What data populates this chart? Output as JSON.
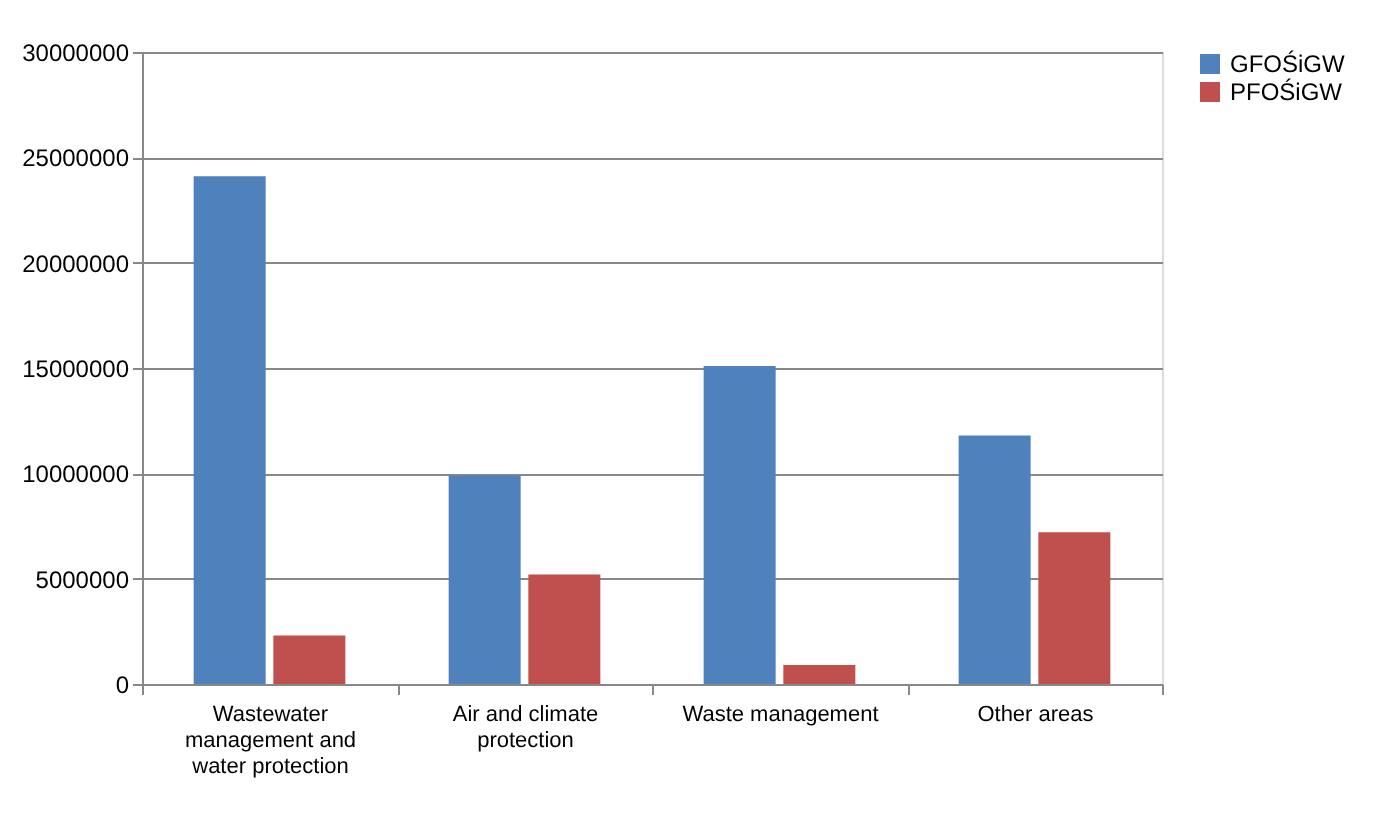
{
  "chart_data": {
    "type": "bar",
    "categories": [
      "Wastewater management and water protection",
      "Air and climate protection",
      "Waste management",
      "Other areas"
    ],
    "series": [
      {
        "name": "GFOŚiGW",
        "color": "#4f81bd",
        "values": [
          24100000,
          9900000,
          15100000,
          11800000
        ]
      },
      {
        "name": "PFOŚiGW",
        "color": "#c0504d",
        "values": [
          2300000,
          5200000,
          900000,
          7200000
        ]
      }
    ],
    "ylim": [
      0,
      30000000
    ],
    "yticks": [
      0,
      5000000,
      10000000,
      15000000,
      20000000,
      25000000,
      30000000
    ],
    "grid": "y",
    "legend": "right"
  }
}
